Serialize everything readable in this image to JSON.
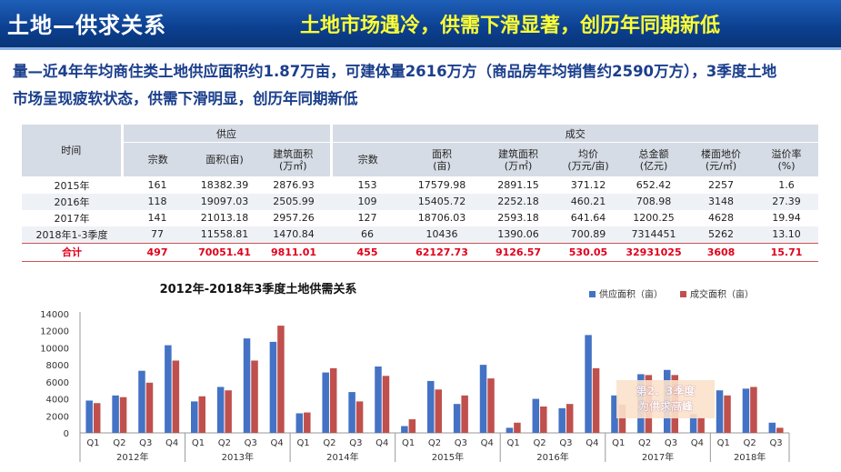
{
  "header": {
    "title": "土地—供求关系",
    "subtitle": "土地市场遇冷，供需下滑显著，创历年同期新低"
  },
  "intro": {
    "line1": "量—近4年年均商住类土地供应面积约1.87万亩，可建体量2616万方（商品房年均销售约2590万方），3季度土地",
    "line2": "市场呈现疲软状态，供需下滑明显，创历年同期新低"
  },
  "table": {
    "group_time": "时间",
    "group_supply": "供应",
    "group_deal": "成交",
    "columns": [
      "宗数",
      "面积(亩)",
      "建筑面积\n(万㎡)",
      "宗数",
      "面积\n(亩)",
      "建筑面积\n(万㎡)",
      "均价\n(万元/亩)",
      "总金额\n(亿元)",
      "楼面地价\n(元/㎡)",
      "溢价率\n(%)"
    ],
    "rows": [
      [
        "2015年",
        "161",
        "18382.39",
        "2876.93",
        "153",
        "17579.98",
        "2891.15",
        "371.12",
        "652.42",
        "2257",
        "1.6"
      ],
      [
        "2016年",
        "118",
        "19097.03",
        "2505.99",
        "109",
        "15405.72",
        "2252.18",
        "460.21",
        "708.98",
        "3148",
        "27.39"
      ],
      [
        "2017年",
        "141",
        "21013.18",
        "2957.26",
        "127",
        "18706.03",
        "2593.18",
        "641.64",
        "1200.25",
        "4628",
        "19.94"
      ],
      [
        "2018年1-3季度",
        "77",
        "11558.81",
        "1470.84",
        "66",
        "10436",
        "1390.06",
        "700.89",
        "7314451",
        "5262",
        "13.10"
      ]
    ],
    "total": [
      "合计",
      "497",
      "70051.41",
      "9811.01",
      "455",
      "62127.73",
      "9126.57",
      "530.05",
      "32931025",
      "3608",
      "15.71"
    ]
  },
  "chart_data": {
    "type": "bar",
    "title": "2012年-2018年3季度土地供需关系",
    "categories": [
      "Q1",
      "Q2",
      "Q3",
      "Q4",
      "Q1",
      "Q2",
      "Q3",
      "Q4",
      "Q1",
      "Q2",
      "Q3",
      "Q4",
      "Q1",
      "Q2",
      "Q3",
      "Q4",
      "Q1",
      "Q2",
      "Q3",
      "Q4",
      "Q1",
      "Q2",
      "Q3",
      "Q4",
      "Q1",
      "Q2",
      "Q3"
    ],
    "groups": [
      {
        "label": "2012年",
        "count": 4
      },
      {
        "label": "2013年",
        "count": 4
      },
      {
        "label": "2014年",
        "count": 4
      },
      {
        "label": "2015年",
        "count": 4
      },
      {
        "label": "2016年",
        "count": 4
      },
      {
        "label": "2017年",
        "count": 4
      },
      {
        "label": "2018年",
        "count": 3
      }
    ],
    "series": [
      {
        "name": "供应面积（亩）",
        "color": "#4472c4",
        "values": [
          3800,
          4400,
          7300,
          10300,
          3700,
          5400,
          11100,
          10700,
          2300,
          7100,
          4800,
          7800,
          800,
          6100,
          3400,
          8000,
          600,
          4000,
          2900,
          11500,
          4400,
          6900,
          7400,
          2200,
          5000,
          5200,
          1200
        ]
      },
      {
        "name": "成交面积（亩）",
        "color": "#c0504d",
        "values": [
          3500,
          4200,
          5900,
          8500,
          4300,
          5000,
          8500,
          12600,
          2400,
          7600,
          3700,
          6700,
          1600,
          5100,
          4400,
          6400,
          1200,
          3100,
          3400,
          7600,
          3300,
          6800,
          6800,
          1800,
          4400,
          5400,
          600
        ]
      }
    ],
    "ylim": [
      0,
      14000
    ],
    "yticks": [
      0,
      2000,
      4000,
      6000,
      8000,
      10000,
      12000,
      14000
    ],
    "legend": "top-right",
    "annotation": {
      "line1": "第2、3季度",
      "line2": "为供求高峰"
    }
  }
}
